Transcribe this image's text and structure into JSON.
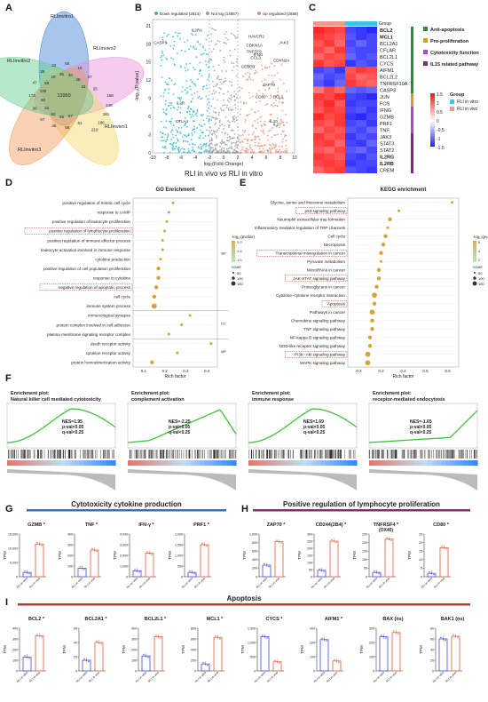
{
  "panel_labels": [
    "A",
    "B",
    "C",
    "D",
    "E",
    "F",
    "G",
    "H",
    "I"
  ],
  "venn": {
    "sets": [
      "RLIinvitro1",
      "RLIinvivo2",
      "RLIinvitro2",
      "RLIinvitro3",
      "RLIinvivo1"
    ],
    "colors": [
      "#3f7fd6",
      "#e88fd8",
      "#f3d86a",
      "#f19a58",
      "#5ecf8e"
    ],
    "center": "13950",
    "numbers": [
      "168",
      "146",
      "181",
      "186",
      "219",
      "61",
      "67",
      "58",
      "65",
      "46",
      "92",
      "67",
      "34",
      "38",
      "50",
      "173",
      "130",
      "47",
      "69",
      "26",
      "19",
      "22",
      "35",
      "65",
      "40",
      "16",
      "28",
      "37",
      "33",
      "25"
    ]
  },
  "volcano": {
    "legend": [
      "Down regulated (2814)",
      "Not sig (14857)",
      "Up regulated (2568)"
    ],
    "colors": {
      "down": "#2ab3d8",
      "ns": "#9a9a9a",
      "up": "#f08a70"
    },
    "xlabel": "log₂(Fold Change)",
    "ylabel": "-log₁₀(P.value)",
    "xticks": [
      "-10",
      "-8",
      "-6",
      "-4",
      "-2",
      "0",
      "2",
      "4",
      "6",
      "8",
      "10"
    ],
    "yticks": [
      "0",
      "3",
      "6",
      "9",
      "12",
      "15",
      "18",
      "21"
    ],
    "bottom_label": "RLI in vivo vs RLI in vitro",
    "genes": [
      "IL2RA",
      "CASP3",
      "HAVCR2",
      "JAK3",
      "CDKN1A",
      "TNFSF9",
      "IFNG",
      "CCL3",
      "CDKN2A",
      "CEBPB",
      "ZAP70",
      "CD80",
      "BCL2",
      "IL10",
      "IL27",
      "CTLA4",
      "IL2R"
    ]
  },
  "heatmap": {
    "group_label": "Group",
    "genes": [
      "BCL2",
      "MCL1",
      "BCL2A1",
      "CFLAR",
      "BCL2L1",
      "CYCS",
      "AIFM1",
      "BCL2L2",
      "TNFRSF10A",
      "CASP3",
      "JUN",
      "FOS",
      "IFNG",
      "GZMB",
      "PRF1",
      "TNF",
      "JAK3",
      "STAT3",
      "STAT2",
      "IL2RG",
      "IL2RB",
      "CREM"
    ],
    "bold_genes": [
      "BCL2",
      "MCL1",
      "IL2RG",
      "IL2RB"
    ],
    "categories": [
      {
        "label": "Anti-apoptosis",
        "color": "#2e8b3c"
      },
      {
        "label": "Pro-proliferation",
        "color": "#d4a017"
      },
      {
        "label": "Cytotoxicity function",
        "color": "#a54ad6"
      },
      {
        "label": "IL15 related pathway",
        "color": "#7a2a7a"
      }
    ],
    "scale_ticks": [
      "1.5",
      "1",
      "0.5",
      "0",
      "-0.5",
      "-1",
      "-1.5"
    ],
    "group_legend_title": "Group",
    "groups": [
      {
        "label": "RLI in vitro",
        "color": "#3fc4e0"
      },
      {
        "label": "RLI in vivo",
        "color": "#e89c8a"
      }
    ],
    "values": [
      [
        1.4,
        1.3,
        1.2,
        -1.2,
        -1.3,
        -1.4
      ],
      [
        1.3,
        1.2,
        1.1,
        -1.1,
        -1.3,
        -1.2
      ],
      [
        1.1,
        1.3,
        1.0,
        -1.2,
        -1.0,
        -1.2
      ],
      [
        1.2,
        1.0,
        1.3,
        -1.1,
        -1.2,
        -1.2
      ],
      [
        1.0,
        1.2,
        1.1,
        -1.0,
        -1.2,
        -1.1
      ],
      [
        1.3,
        1.1,
        1.2,
        -1.3,
        -1.1,
        -1.2
      ],
      [
        -1.2,
        -1.1,
        -1.3,
        1.1,
        1.3,
        1.2
      ],
      [
        -1.0,
        -1.2,
        -1.1,
        1.2,
        1.0,
        1.1
      ],
      [
        -1.1,
        -1.3,
        -1.0,
        1.3,
        1.1,
        1.0
      ],
      [
        0.9,
        1.2,
        1.0,
        -1.0,
        -1.1,
        -1.0
      ],
      [
        1.3,
        1.2,
        1.4,
        -1.2,
        -1.3,
        -1.4
      ],
      [
        1.2,
        1.4,
        1.1,
        -1.3,
        -1.2,
        -1.2
      ],
      [
        1.1,
        1.3,
        1.2,
        -1.2,
        -1.1,
        -1.3
      ],
      [
        1.4,
        1.2,
        1.3,
        -1.3,
        -1.4,
        -1.2
      ],
      [
        1.2,
        1.1,
        1.3,
        -1.2,
        -1.1,
        -1.3
      ],
      [
        1.0,
        1.2,
        1.1,
        -1.1,
        -1.2,
        -1.0
      ],
      [
        1.3,
        1.1,
        1.2,
        -1.3,
        -1.1,
        -1.2
      ],
      [
        1.2,
        1.3,
        1.0,
        -1.2,
        -1.3,
        -1.0
      ],
      [
        1.1,
        1.0,
        1.2,
        -1.1,
        -1.0,
        -1.2
      ],
      [
        1.3,
        1.2,
        1.1,
        -1.2,
        -1.3,
        -1.1
      ],
      [
        1.2,
        1.3,
        1.2,
        -1.3,
        -1.2,
        -1.2
      ],
      [
        1.0,
        1.2,
        1.3,
        -1.1,
        -1.2,
        -1.3
      ]
    ]
  },
  "go": {
    "title": "GO Enrichment",
    "xlabel": "Rich factor",
    "xticks": [
      "0.1",
      "0.2",
      "0.3",
      "0.4"
    ],
    "xlim": [
      0.05,
      0.45
    ],
    "sections": [
      "BP",
      "CC",
      "MF"
    ],
    "legend_title": "-log₁₀(pvalue)",
    "legend_ticks": [
      "2.0",
      "1.5",
      "1.0"
    ],
    "count_title": "count",
    "count_ticks": [
      "50",
      "100",
      "150"
    ],
    "terms": [
      {
        "label": "positive regulation of mitotic cell cycle",
        "x": 0.24,
        "s": 1,
        "boxed": false,
        "sec": "BP"
      },
      {
        "label": "response to cAMP",
        "x": 0.22,
        "s": 1,
        "boxed": false,
        "sec": "BP"
      },
      {
        "label": "positive regulation of leukocyte proliferation",
        "x": 0.21,
        "s": 1,
        "boxed": false,
        "sec": "BP"
      },
      {
        "label": "positive regulation of lymphocyte proliferation",
        "x": 0.2,
        "s": 1,
        "boxed": true,
        "sec": "BP"
      },
      {
        "label": "positive regulation of immune effector process",
        "x": 0.19,
        "s": 1,
        "boxed": false,
        "sec": "BP"
      },
      {
        "label": "leukocyte activation involved in immune response",
        "x": 0.19,
        "s": 1,
        "boxed": false,
        "sec": "BP"
      },
      {
        "label": "cytokine production",
        "x": 0.18,
        "s": 1,
        "boxed": false,
        "sec": "BP"
      },
      {
        "label": "positive regulation of cell population proliferation",
        "x": 0.17,
        "s": 2,
        "boxed": false,
        "sec": "BP"
      },
      {
        "label": "response to cytokine",
        "x": 0.17,
        "s": 2,
        "boxed": false,
        "sec": "BP"
      },
      {
        "label": "negative regulation of apoptotic process",
        "x": 0.16,
        "s": 2,
        "boxed": true,
        "sec": "BP"
      },
      {
        "label": "cell cycle",
        "x": 0.15,
        "s": 2,
        "boxed": false,
        "sec": "BP"
      },
      {
        "label": "immune system process",
        "x": 0.15,
        "s": 3,
        "boxed": false,
        "sec": "BP"
      },
      {
        "label": "immunological synapse",
        "x": 0.32,
        "s": 1,
        "boxed": false,
        "sec": "CC"
      },
      {
        "label": "protein complex involved in cell adhesion",
        "x": 0.28,
        "s": 1,
        "boxed": false,
        "sec": "CC"
      },
      {
        "label": "plasma membrane signaling receptor complex",
        "x": 0.22,
        "s": 1,
        "boxed": false,
        "sec": "CC"
      },
      {
        "label": "death receptor activity",
        "x": 0.42,
        "s": 1,
        "boxed": false,
        "sec": "MF"
      },
      {
        "label": "cytokine receptor activity",
        "x": 0.26,
        "s": 1,
        "boxed": false,
        "sec": "MF"
      },
      {
        "label": "protein homodimerization activity",
        "x": 0.14,
        "s": 2,
        "boxed": false,
        "sec": "MF"
      }
    ]
  },
  "kegg": {
    "title": "KEGG enrichment",
    "xlabel": "Rich factor",
    "xticks": [
      "0.2",
      "0.3",
      "0.4",
      "0.5",
      "0.6"
    ],
    "xlim": [
      0.15,
      0.65
    ],
    "legend_title": "-log₁₀(pvalue)",
    "legend_ticks": [
      "6",
      "4",
      "2"
    ],
    "count_title": "count",
    "count_ticks": [
      "50",
      "100",
      "150"
    ],
    "terms": [
      {
        "label": "Glycine, serine and threonine metabolism",
        "x": 0.62,
        "s": 1,
        "boxed": false
      },
      {
        "label": "p53 signaling pathway",
        "x": 0.38,
        "s": 1,
        "boxed": true
      },
      {
        "label": "Neutrophil extracellular trap formation",
        "x": 0.34,
        "s": 2,
        "boxed": false
      },
      {
        "label": "Inflammatory mediator regulation of TRP channels",
        "x": 0.33,
        "s": 1,
        "boxed": false
      },
      {
        "label": "Cell cycle",
        "x": 0.32,
        "s": 2,
        "boxed": false
      },
      {
        "label": "Necroptosis",
        "x": 0.31,
        "s": 2,
        "boxed": false
      },
      {
        "label": "Transcriptional misregulation in cancer",
        "x": 0.3,
        "s": 2,
        "boxed": true
      },
      {
        "label": "Pyruvate metabolism",
        "x": 0.3,
        "s": 1,
        "boxed": false
      },
      {
        "label": "MicroRNAs in cancer",
        "x": 0.29,
        "s": 2,
        "boxed": false
      },
      {
        "label": "JAK-STAT signaling pathway",
        "x": 0.29,
        "s": 2,
        "boxed": true
      },
      {
        "label": "Proteoglycans in cancer",
        "x": 0.28,
        "s": 2,
        "boxed": false
      },
      {
        "label": "Cytokine−cytokine receptor interaction",
        "x": 0.27,
        "s": 3,
        "boxed": false
      },
      {
        "label": "Apoptosis",
        "x": 0.27,
        "s": 2,
        "boxed": true
      },
      {
        "label": "Pathways in cancer",
        "x": 0.26,
        "s": 3,
        "boxed": false
      },
      {
        "label": "Chemokine signaling pathway",
        "x": 0.26,
        "s": 2,
        "boxed": false
      },
      {
        "label": "TNF signaling pathway",
        "x": 0.26,
        "s": 2,
        "boxed": false
      },
      {
        "label": "NF-kappa B signaling pathway",
        "x": 0.25,
        "s": 2,
        "boxed": false
      },
      {
        "label": "NOD-like receptor signaling pathway",
        "x": 0.25,
        "s": 2,
        "boxed": false
      },
      {
        "label": "PI3K−Akt signaling pathway",
        "x": 0.24,
        "s": 3,
        "boxed": true
      },
      {
        "label": "MAPK signaling pathway",
        "x": 0.24,
        "s": 3,
        "boxed": false
      }
    ]
  },
  "gsea": [
    {
      "title": "Enrichment plot:\nNatural killer cell mediated cytotoxicity",
      "nes": "NES=1.95",
      "p": "p-val<0.05",
      "q": "q-val<0.25",
      "shape": "up"
    },
    {
      "title": "Enrichment plot:\ncomplement activation",
      "nes": "NES=-2.25",
      "p": "p-val<0.05",
      "q": "q-val<0.25",
      "shape": "down"
    },
    {
      "title": "Enrichment plot:\nimmune response",
      "nes": "NES=1.69",
      "p": "p-val<0.05",
      "q": "q-val<0.25",
      "shape": "up"
    },
    {
      "title": "Enrichment plot:\nreceptor-mediated endocytosis",
      "nes": "NES=-1.65",
      "p": "p-val<0.05",
      "q": "q-val<0.25",
      "shape": "down2"
    }
  ],
  "section_g_title": "Cytotoxicity cytokine production",
  "section_h_title": "Positive regulation of lymphocyte proliferation",
  "section_i_title": "Apoptosis",
  "y_unit": "TPM",
  "x_groups": [
    "RLI in vitro",
    "RLI in vivo"
  ],
  "bar_colors": {
    "vitro": "#4a4ad6",
    "vivo": "#d9603a"
  },
  "chart_data": [
    {
      "type": "bar",
      "title": "GZMB *",
      "categories": [
        "RLI in vitro",
        "RLI in vivo"
      ],
      "values": [
        1500,
        11500
      ],
      "ylim": [
        0,
        15000
      ],
      "yticks": [
        "0",
        "5,000",
        "10,000",
        "15,000"
      ]
    },
    {
      "type": "bar",
      "title": "TNF *",
      "categories": [
        "RLI in vitro",
        "RLI in vivo"
      ],
      "values": [
        80,
        250
      ],
      "ylim": [
        0,
        400
      ],
      "yticks": [
        "0",
        "100",
        "200",
        "300",
        "400"
      ]
    },
    {
      "type": "bar",
      "title": "IFN-γ *",
      "categories": [
        "RLI in vitro",
        "RLI in vivo"
      ],
      "values": [
        550,
        2200
      ],
      "ylim": [
        0,
        4000
      ],
      "yticks": [
        "0",
        "1,000",
        "2,000",
        "3,000",
        "4,000"
      ]
    },
    {
      "type": "bar",
      "title": "PRF1 *",
      "categories": [
        "RLI in vitro",
        "RLI in vivo"
      ],
      "values": [
        200,
        1500
      ],
      "ylim": [
        0,
        2000
      ],
      "yticks": [
        "0",
        "500",
        "1,000",
        "1,500",
        "2,000"
      ]
    },
    {
      "type": "bar",
      "title": "ZAP70 *",
      "categories": [
        "RLI in vitro",
        "RLI in vivo"
      ],
      "values": [
        270,
        820
      ],
      "ylim": [
        0,
        1000
      ],
      "yticks": [
        "0",
        "200",
        "400",
        "600",
        "800",
        "1,000"
      ]
    },
    {
      "type": "bar",
      "title": "CD244(2B4) *",
      "categories": [
        "RLI in vitro",
        "RLI in vivo"
      ],
      "values": [
        45,
        250
      ],
      "ylim": [
        0,
        300
      ],
      "yticks": [
        "0",
        "50",
        "100",
        "150",
        "200",
        "250",
        "300"
      ]
    },
    {
      "type": "bar",
      "title": "TNFRSF4 * (OX40)",
      "categories": [
        "RLI in vitro",
        "RLI in vivo"
      ],
      "values": [
        25,
        220
      ],
      "ylim": [
        0,
        250
      ],
      "yticks": [
        "0",
        "50",
        "100",
        "150",
        "200",
        "250"
      ]
    },
    {
      "type": "bar",
      "title": "CD80 *",
      "categories": [
        "RLI in vitro",
        "RLI in vivo"
      ],
      "values": [
        2,
        17
      ],
      "ylim": [
        0,
        25
      ],
      "yticks": [
        "0",
        "5",
        "10",
        "15",
        "20",
        "25"
      ]
    },
    {
      "type": "bar",
      "title": "BCL2 *",
      "categories": [
        "RLI in vitro",
        "RLI in vivo"
      ],
      "values": [
        130,
        330
      ],
      "ylim": [
        0,
        400
      ],
      "yticks": [
        "0",
        "100",
        "200",
        "300",
        "400"
      ]
    },
    {
      "type": "bar",
      "title": "BCL2A1 *",
      "categories": [
        "RLI in vitro",
        "RLI in vivo"
      ],
      "values": [
        15,
        40
      ],
      "ylim": [
        0,
        60
      ],
      "yticks": [
        "0",
        "20",
        "40",
        "60"
      ]
    },
    {
      "type": "bar",
      "title": "BCL2L1 *",
      "categories": [
        "RLI in vitro",
        "RLI in vivo"
      ],
      "values": [
        140,
        320
      ],
      "ylim": [
        0,
        400
      ],
      "yticks": [
        "0",
        "100",
        "200",
        "300",
        "400"
      ]
    },
    {
      "type": "bar",
      "title": "MCL1 *",
      "categories": [
        "RLI in vitro",
        "RLI in vivo"
      ],
      "values": [
        130,
        630
      ],
      "ylim": [
        0,
        800
      ],
      "yticks": [
        "0",
        "200",
        "400",
        "600",
        "800"
      ]
    },
    {
      "type": "bar",
      "title": "CYCS *",
      "categories": [
        "RLI in vitro",
        "RLI in vivo"
      ],
      "values": [
        1200,
        320
      ],
      "ylim": [
        0,
        1500
      ],
      "yticks": [
        "0",
        "500",
        "1,000",
        "1,500"
      ]
    },
    {
      "type": "bar",
      "title": "AIFM1 *",
      "categories": [
        "RLI in vitro",
        "RLI in vivo"
      ],
      "values": [
        220,
        70
      ],
      "ylim": [
        0,
        300
      ],
      "yticks": [
        "0",
        "100",
        "200",
        "300"
      ]
    },
    {
      "type": "bar",
      "title": "BAX (ns)",
      "categories": [
        "RLI in vitro",
        "RLI in vivo"
      ],
      "values": [
        240,
        270
      ],
      "ylim": [
        0,
        300
      ],
      "yticks": [
        "0",
        "100",
        "200",
        "300"
      ]
    },
    {
      "type": "bar",
      "title": "BAK1 (ns)",
      "categories": [
        "RLI in vitro",
        "RLI in vivo"
      ],
      "values": [
        60,
        65
      ],
      "ylim": [
        0,
        80
      ],
      "yticks": [
        "0",
        "20",
        "40",
        "60",
        "80"
      ]
    }
  ]
}
